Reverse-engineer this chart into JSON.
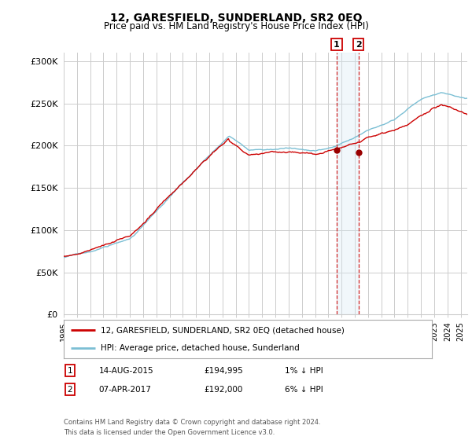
{
  "title": "12, GARESFIELD, SUNDERLAND, SR2 0EQ",
  "subtitle": "Price paid vs. HM Land Registry's House Price Index (HPI)",
  "ylabel_ticks": [
    "£0",
    "£50K",
    "£100K",
    "£150K",
    "£200K",
    "£250K",
    "£300K"
  ],
  "ytick_values": [
    0,
    50000,
    100000,
    150000,
    200000,
    250000,
    300000
  ],
  "ylim": [
    0,
    310000
  ],
  "xlim_start": 1995.0,
  "xlim_end": 2025.5,
  "legend_line1": "12, GARESFIELD, SUNDERLAND, SR2 0EQ (detached house)",
  "legend_line2": "HPI: Average price, detached house, Sunderland",
  "sale1_date": "14-AUG-2015",
  "sale1_price": "£194,995",
  "sale1_pct": "1% ↓ HPI",
  "sale2_date": "07-APR-2017",
  "sale2_price": "£192,000",
  "sale2_pct": "6% ↓ HPI",
  "footnote": "Contains HM Land Registry data © Crown copyright and database right 2024.\nThis data is licensed under the Open Government Licence v3.0.",
  "hpi_color": "#7bbfd4",
  "price_color": "#cc0000",
  "marker_color": "#990000",
  "vline_color": "#cc0000",
  "shade_color": "#d8eaf5",
  "background": "#ffffff",
  "grid_color": "#cccccc"
}
